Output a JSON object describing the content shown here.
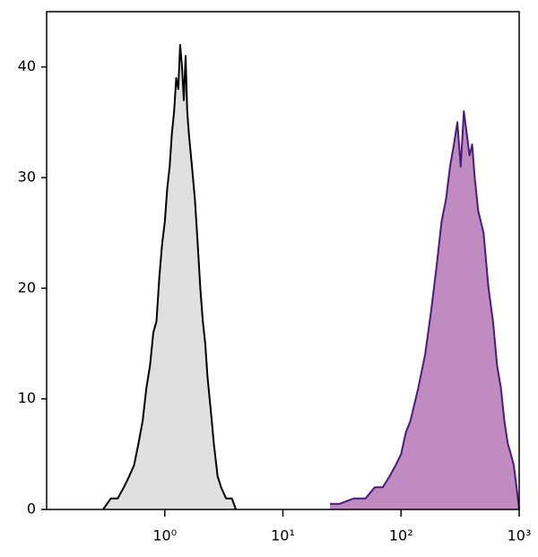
{
  "chart_data": {
    "type": "histogram-overlay",
    "xscale": "log",
    "xlim": [
      0.1,
      1000
    ],
    "ylim": [
      0,
      45
    ],
    "xticks": [
      {
        "value": 1,
        "label": "10⁰"
      },
      {
        "value": 10,
        "label": "10¹"
      },
      {
        "value": 100,
        "label": "10²"
      },
      {
        "value": 1000,
        "label": "10³"
      }
    ],
    "yticks": [
      0,
      10,
      20,
      30,
      40
    ],
    "series": [
      {
        "color": "#000000",
        "fill": "#e0e0e0",
        "x": [
          0.3,
          0.35,
          0.4,
          0.45,
          0.5,
          0.55,
          0.6,
          0.65,
          0.7,
          0.75,
          0.8,
          0.85,
          0.9,
          0.95,
          1.0,
          1.05,
          1.1,
          1.15,
          1.2,
          1.25,
          1.3,
          1.35,
          1.4,
          1.45,
          1.5,
          1.55,
          1.6,
          1.7,
          1.8,
          1.9,
          2.0,
          2.1,
          2.2,
          2.3,
          2.4,
          2.5,
          2.6,
          2.8,
          3.0,
          3.3,
          3.7,
          4.0
        ],
        "values": [
          0,
          1,
          1,
          2,
          3,
          4,
          6,
          8,
          11,
          13,
          16,
          17,
          21,
          24,
          26,
          29,
          31,
          34,
          36,
          39,
          38,
          42,
          40,
          37,
          41,
          36,
          34,
          31,
          28,
          24,
          20,
          17,
          15,
          12,
          10,
          8,
          6,
          3,
          2,
          1,
          1,
          0
        ]
      },
      {
        "color": "#4b1a7a",
        "fill": "#c08bc0",
        "x": [
          25,
          30,
          40,
          50,
          60,
          70,
          80,
          90,
          100,
          110,
          120,
          140,
          160,
          180,
          200,
          220,
          240,
          260,
          280,
          300,
          320,
          340,
          360,
          380,
          400,
          420,
          450,
          500,
          550,
          600,
          650,
          700,
          750,
          800,
          850,
          900,
          950,
          1000
        ],
        "values": [
          0.5,
          0.5,
          1,
          1,
          2,
          2,
          3,
          4,
          5,
          7,
          8,
          11,
          14,
          18,
          22,
          26,
          28,
          31,
          33,
          35,
          31,
          36,
          34,
          32,
          33,
          30,
          27,
          25,
          20,
          17,
          13,
          11,
          8,
          6,
          5,
          4,
          2,
          0
        ]
      }
    ]
  }
}
